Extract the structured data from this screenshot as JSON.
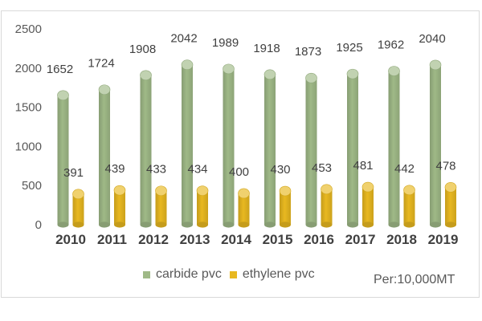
{
  "chart_data": {
    "type": "bar",
    "categories": [
      "2010",
      "2011",
      "2012",
      "2013",
      "2014",
      "2015",
      "2016",
      "2017",
      "2018",
      "2019"
    ],
    "series": [
      {
        "name": "carbide pvc",
        "color": "#9fb987",
        "values": [
          1652,
          1724,
          1908,
          2042,
          1989,
          1918,
          1873,
          1925,
          1962,
          2040
        ]
      },
      {
        "name": "ethylene pvc",
        "color": "#e8b820",
        "values": [
          391,
          439,
          433,
          434,
          400,
          430,
          453,
          481,
          442,
          478
        ]
      }
    ],
    "yticks": [
      0,
      500,
      1000,
      1500,
      2000,
      2500
    ],
    "ylim": [
      0,
      2500
    ],
    "grid": false,
    "legend_position": "bottom",
    "unit_note": "Per:10,000MT",
    "bar_shape": "cylinder"
  }
}
